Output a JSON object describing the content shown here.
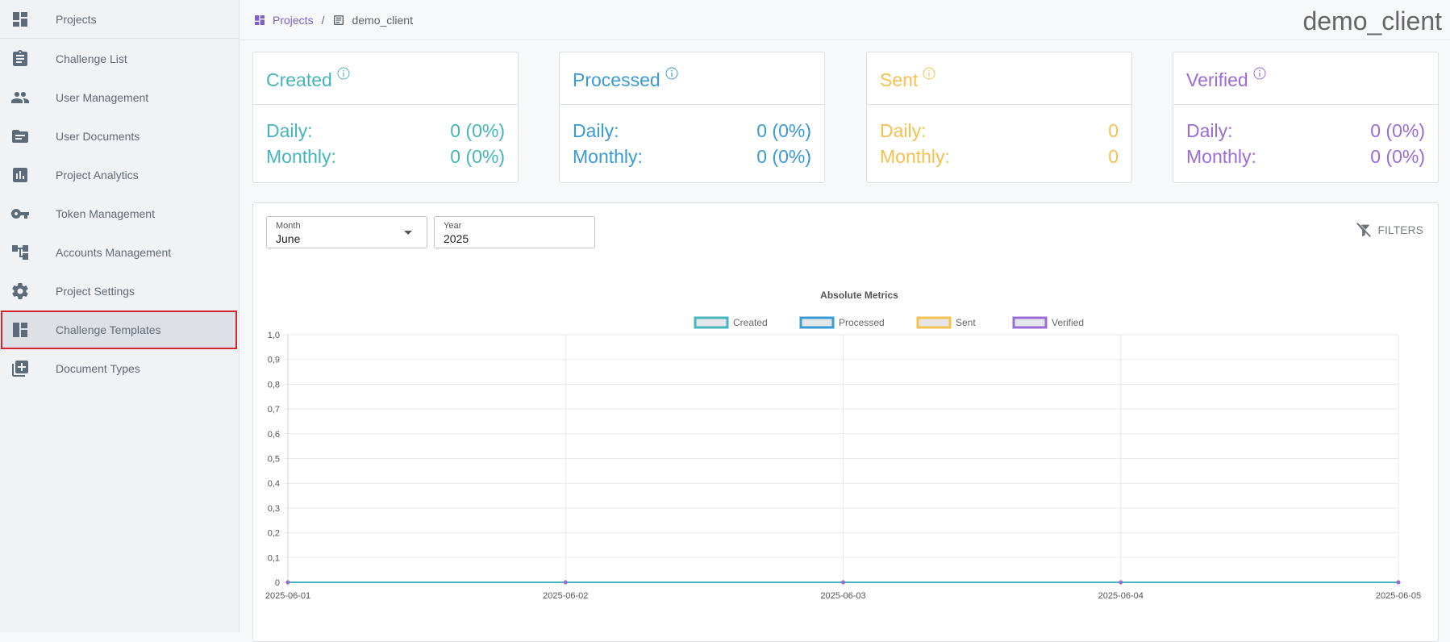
{
  "sidebar": {
    "items": [
      {
        "label": "Projects",
        "icon": "dashboard-icon"
      },
      {
        "label": "Challenge List",
        "icon": "clipboard-icon"
      },
      {
        "label": "User Management",
        "icon": "people-icon"
      },
      {
        "label": "User Documents",
        "icon": "folder-icon"
      },
      {
        "label": "Project Analytics",
        "icon": "bar-chart-icon"
      },
      {
        "label": "Token Management",
        "icon": "key-icon"
      },
      {
        "label": "Accounts Management",
        "icon": "account-tree-icon"
      },
      {
        "label": "Project Settings",
        "icon": "gear-icon"
      },
      {
        "label": "Challenge Templates",
        "icon": "template-icon"
      },
      {
        "label": "Document Types",
        "icon": "document-add-icon"
      }
    ],
    "active_index": 8
  },
  "header": {
    "breadcrumb_root": "Projects",
    "breadcrumb_sep": "/",
    "breadcrumb_current": "demo_client",
    "title": "demo_client"
  },
  "cards": [
    {
      "title": "Created",
      "color": "#45b5bc",
      "daily_label": "Daily:",
      "daily_value": "0 (0%)",
      "monthly_label": "Monthly:",
      "monthly_value": "0 (0%)"
    },
    {
      "title": "Processed",
      "color": "#3a9ad6",
      "daily_label": "Daily:",
      "daily_value": "0 (0%)",
      "monthly_label": "Monthly:",
      "monthly_value": "0 (0%)"
    },
    {
      "title": "Sent",
      "color": "#f4c150",
      "daily_label": "Daily:",
      "daily_value": "0",
      "monthly_label": "Monthly:",
      "monthly_value": "0"
    },
    {
      "title": "Verified",
      "color": "#9b6cd8",
      "daily_label": "Daily:",
      "daily_value": "0 (0%)",
      "monthly_label": "Monthly:",
      "monthly_value": "0 (0%)"
    }
  ],
  "filters": {
    "month_label": "Month",
    "month_value": "June",
    "year_label": "Year",
    "year_value": "2025",
    "filters_button": "FILTERS"
  },
  "chart_data": {
    "type": "line",
    "title": "Absolute Metrics",
    "x": [
      "2025-06-01",
      "2025-06-02",
      "2025-06-03",
      "2025-06-04",
      "2025-06-05"
    ],
    "ylim": [
      0,
      1.0
    ],
    "y_ticks": [
      "0",
      "0,1",
      "0,2",
      "0,3",
      "0,4",
      "0,5",
      "0,6",
      "0,7",
      "0,8",
      "0,9",
      "1,0"
    ],
    "grid": true,
    "legend_position": "top",
    "series": [
      {
        "name": "Created",
        "color": "#45b5bc",
        "values": [
          0,
          0,
          0,
          0,
          0
        ]
      },
      {
        "name": "Processed",
        "color": "#3a9ad6",
        "values": [
          0,
          0,
          0,
          0,
          0
        ]
      },
      {
        "name": "Sent",
        "color": "#f4c150",
        "values": [
          0,
          0,
          0,
          0,
          0
        ]
      },
      {
        "name": "Verified",
        "color": "#9b6cd8",
        "values": [
          0,
          0,
          0,
          0,
          0
        ]
      }
    ]
  }
}
